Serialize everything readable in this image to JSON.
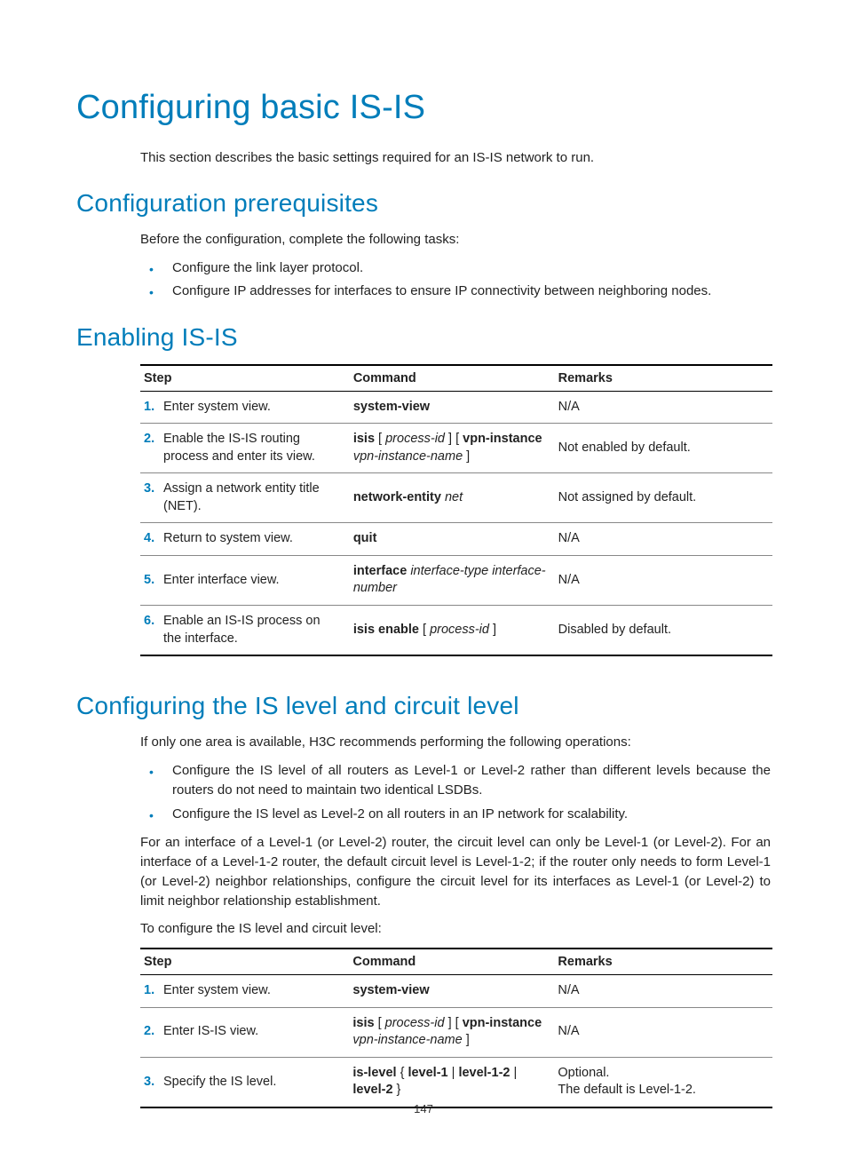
{
  "page_number": "147",
  "title": "Configuring basic IS-IS",
  "intro_paragraph": "This section describes the basic settings required for an IS-IS network to run.",
  "colors": {
    "accent": "#007dba",
    "text": "#222222",
    "rule": "#000000",
    "rule_light": "#888888",
    "bg": "#ffffff"
  },
  "sec_prereq": {
    "heading": "Configuration prerequisites",
    "lead": "Before the configuration, complete the following tasks:",
    "bullets": [
      "Configure the link layer protocol.",
      "Configure IP addresses for interfaces to ensure IP connectivity between neighboring nodes."
    ]
  },
  "sec_enable": {
    "heading": "Enabling IS-IS",
    "table": {
      "headers": {
        "step": "Step",
        "command": "Command",
        "remarks": "Remarks"
      },
      "rows": [
        {
          "n": "1.",
          "desc": "Enter system view.",
          "cmd_html": "<span class=\"b\">system-view</span>",
          "rem": "N/A"
        },
        {
          "n": "2.",
          "desc": "Enable the IS-IS routing process and enter its view.",
          "cmd_html": "<span class=\"b\">isis</span> [ <span class=\"i\">process-id</span> ] [ <span class=\"b\">vpn-instance</span> <span class=\"i\">vpn-instance-name</span> ]",
          "rem": "Not enabled by default."
        },
        {
          "n": "3.",
          "desc": "Assign a network entity title (NET).",
          "cmd_html": "<span class=\"b\">network-entity</span> <span class=\"i\">net</span>",
          "rem": "Not assigned by default."
        },
        {
          "n": "4.",
          "desc": "Return to system view.",
          "cmd_html": "<span class=\"b\">quit</span>",
          "rem": "N/A"
        },
        {
          "n": "5.",
          "desc": "Enter interface view.",
          "cmd_html": "<span class=\"b\">interface</span> <span class=\"i\">interface-type interface-number</span>",
          "rem": "N/A"
        },
        {
          "n": "6.",
          "desc": "Enable an IS-IS process on the interface.",
          "cmd_html": "<span class=\"b\">isis enable</span> [ <span class=\"i\">process-id</span> ]",
          "rem": "Disabled by default."
        }
      ]
    }
  },
  "sec_level": {
    "heading": "Configuring the IS level and circuit level",
    "lead": "If only one area is available, H3C recommends performing the following operations:",
    "bullets": [
      "Configure the IS level of all routers as Level-1 or Level-2 rather than different levels because the routers do not need to maintain two identical LSDBs.",
      "Configure the IS level as Level-2 on all routers in an IP network for scalability."
    ],
    "para1": "For an interface of a Level-1 (or Level-2) router, the circuit level can only be Level-1 (or Level-2). For an interface of a Level-1-2 router, the default circuit level is Level-1-2; if the router only needs to form Level-1 (or Level-2) neighbor relationships, configure the circuit level for its interfaces as Level-1 (or Level-2) to limit neighbor relationship establishment.",
    "para2": "To configure the IS level and circuit level:",
    "table": {
      "headers": {
        "step": "Step",
        "command": "Command",
        "remarks": "Remarks"
      },
      "rows": [
        {
          "n": "1.",
          "desc": "Enter system view.",
          "cmd_html": "<span class=\"b\">system-view</span>",
          "rem": "N/A"
        },
        {
          "n": "2.",
          "desc": "Enter IS-IS view.",
          "cmd_html": "<span class=\"b\">isis</span> [ <span class=\"i\">process-id</span> ] [ <span class=\"b\">vpn-instance</span> <span class=\"i\">vpn-instance-name</span> ]",
          "rem": "N/A"
        },
        {
          "n": "3.",
          "desc": "Specify the IS level.",
          "cmd_html": "<span class=\"b\">is-level</span> { <span class=\"b\">level-1</span> | <span class=\"b\">level-1-2</span> | <span class=\"b\">level-2</span> }",
          "rem": "Optional.<br>The default is Level-1-2."
        }
      ]
    }
  }
}
